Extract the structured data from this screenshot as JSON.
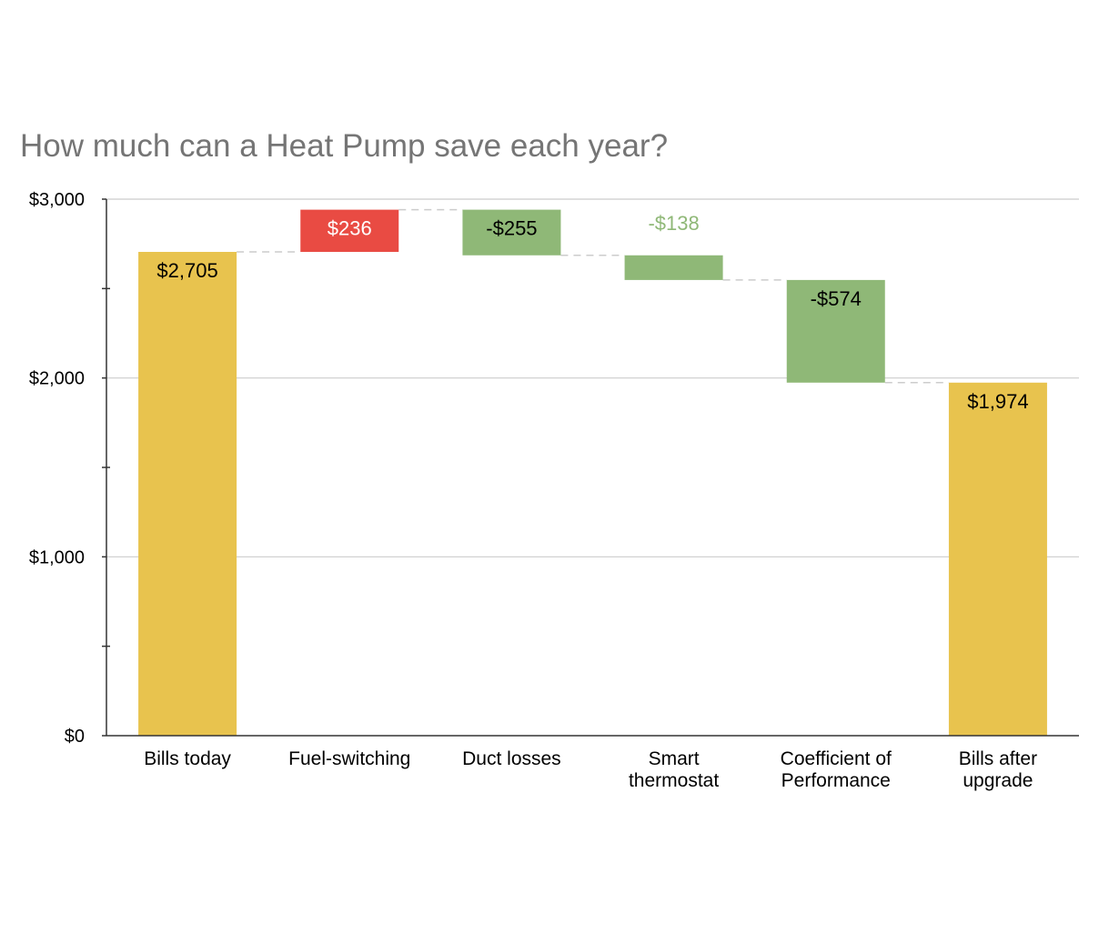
{
  "chart_data": {
    "type": "waterfall",
    "title": "How much can a Heat Pump save each year?",
    "xlabel": "",
    "ylabel": "",
    "ylim": [
      0,
      3000
    ],
    "yticks": [
      0,
      1000,
      2000,
      3000
    ],
    "ytick_labels": [
      "$0",
      "$1,000",
      "$2,000",
      "$3,000"
    ],
    "grid": true,
    "legend": "none",
    "colors": {
      "total": "#E8C34E",
      "increase": "#E94B43",
      "decrease": "#8FB877",
      "connector": "#CCCCCC",
      "gridline": "#CCCCCC",
      "axis": "#333333"
    },
    "categories": [
      [
        "Bills today"
      ],
      [
        "Fuel-switching"
      ],
      [
        "Duct losses"
      ],
      [
        "Smart",
        "thermostat"
      ],
      [
        "Coefficient of",
        "Performance"
      ],
      [
        "Bills after",
        "upgrade"
      ]
    ],
    "steps": [
      {
        "kind": "total",
        "value": 2705,
        "label": "$2,705"
      },
      {
        "kind": "increase",
        "value": 236,
        "label": "$236"
      },
      {
        "kind": "decrease",
        "value": -255,
        "label": "-$255"
      },
      {
        "kind": "decrease",
        "value": -138,
        "label": "-$138"
      },
      {
        "kind": "decrease",
        "value": -574,
        "label": "-$574"
      },
      {
        "kind": "total",
        "value": 1974,
        "label": "$1,974"
      }
    ]
  }
}
